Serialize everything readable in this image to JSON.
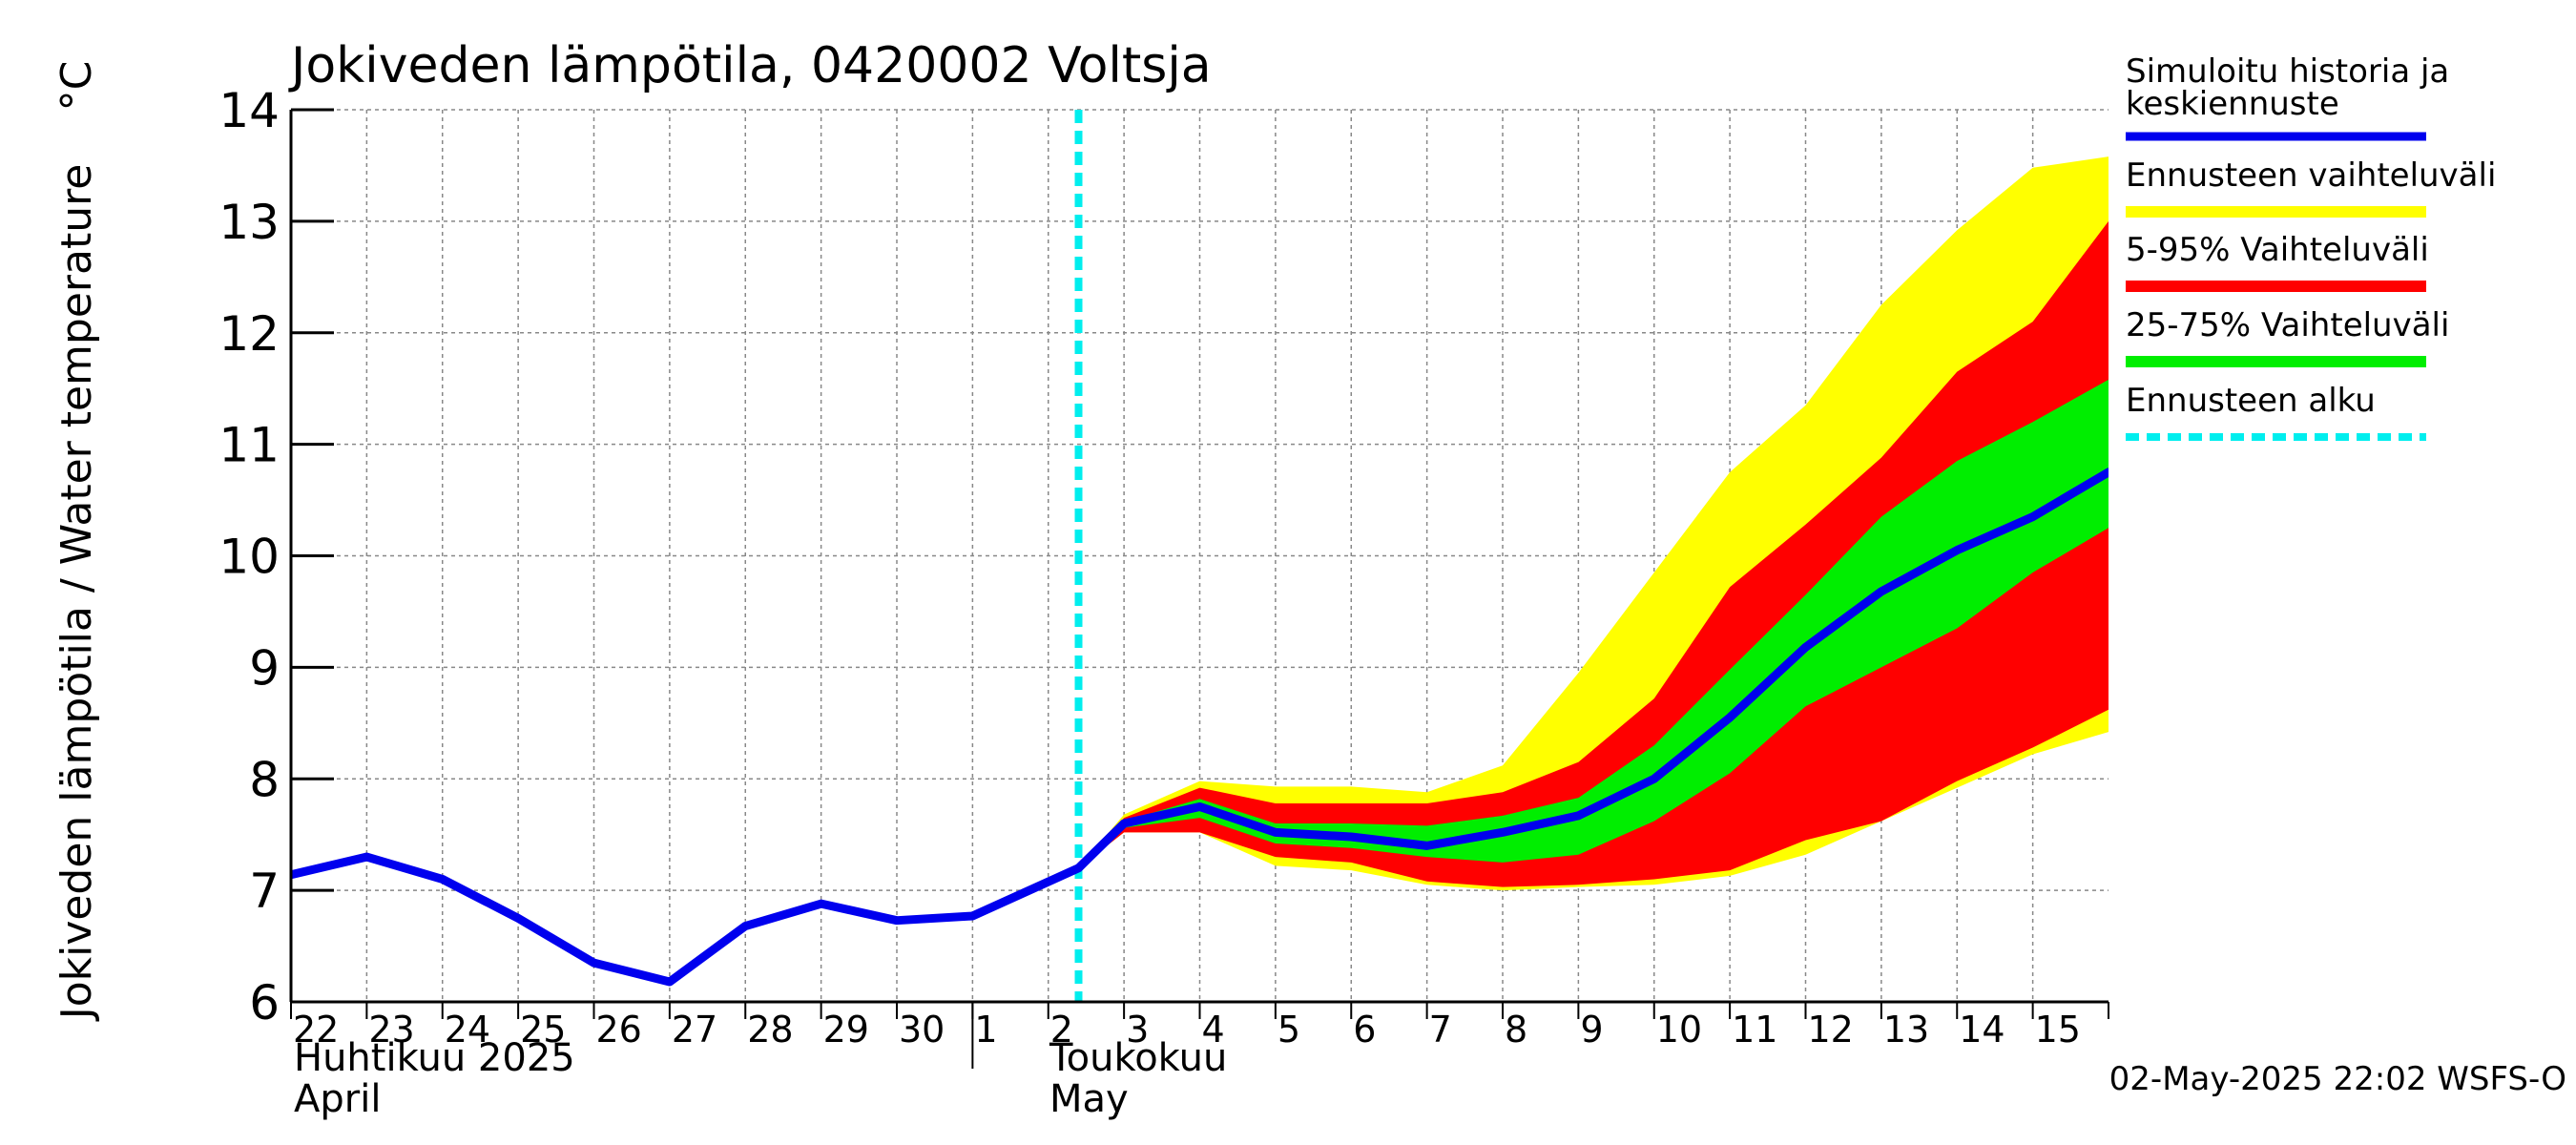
{
  "chart_data": {
    "type": "area",
    "title": "Jokiveden lämpötila, 0420002 Voltsja",
    "ylabel": "Jokiveden lämpötila / Water temperature",
    "yunit": "°C",
    "ylim": [
      6,
      14
    ],
    "yticks": [
      6,
      7,
      8,
      9,
      10,
      11,
      12,
      13,
      14
    ],
    "x_start_day": "2025-04-22",
    "x_days": 24,
    "day_labels": [
      "22",
      "23",
      "24",
      "25",
      "26",
      "27",
      "28",
      "29",
      "30",
      "1",
      "2",
      "3",
      "4",
      "5",
      "6",
      "7",
      "8",
      "9",
      "10",
      "11",
      "12",
      "13",
      "14",
      "15"
    ],
    "month_labels": {
      "april_fi": "Huhtikuu  2025",
      "april_en": "April",
      "may_fi": "Toukokuu",
      "may_en": "May"
    },
    "forecast_start_day": 10.4,
    "legend": [
      {
        "label": "Simuloitu historia ja keskiennuste",
        "color": "#0000ee",
        "style": "solid"
      },
      {
        "label": "Ennusteen vaihteluväli",
        "color": "#ffff00",
        "style": "solid"
      },
      {
        "label": "5-95% Vaihteluväli",
        "color": "#ff0000",
        "style": "solid"
      },
      {
        "label": "25-75% Vaihteluväli",
        "color": "#00ee00",
        "style": "solid"
      },
      {
        "label": "Ennusteen alku",
        "color": "#00eeee",
        "style": "dashed"
      }
    ],
    "footer": "02-May-2025 22:02 WSFS-O",
    "series": [
      {
        "name": "Simuloitu historia ja keskiennuste",
        "x": [
          0,
          1,
          2,
          3,
          4,
          5,
          6,
          7,
          8,
          9,
          10.4,
          11,
          12,
          13,
          14,
          15,
          16,
          17,
          18,
          19,
          20,
          21,
          22,
          23,
          24
        ],
        "values": [
          7.14,
          7.3,
          7.1,
          6.75,
          6.35,
          6.18,
          6.68,
          6.88,
          6.73,
          6.77,
          7.2,
          7.6,
          7.75,
          7.52,
          7.48,
          7.4,
          7.52,
          7.67,
          8.0,
          8.55,
          9.18,
          9.68,
          10.05,
          10.35,
          10.75
        ]
      },
      {
        "name": "Ennusteen vaihteluväli",
        "x": [
          10.4,
          11,
          12,
          13,
          14,
          15,
          16,
          17,
          18,
          19,
          20,
          21,
          22,
          23,
          24
        ],
        "upper": [
          7.2,
          7.68,
          7.98,
          7.93,
          7.93,
          7.88,
          8.12,
          8.95,
          9.85,
          10.75,
          11.35,
          12.25,
          12.92,
          13.48,
          13.58
        ],
        "lower": [
          7.2,
          7.52,
          7.52,
          7.22,
          7.18,
          7.05,
          7.0,
          7.03,
          7.05,
          7.13,
          7.32,
          7.62,
          7.92,
          8.22,
          8.42
        ]
      },
      {
        "name": "5-95% Vaihteluväli",
        "x": [
          10.4,
          11,
          12,
          13,
          14,
          15,
          16,
          17,
          18,
          19,
          20,
          21,
          22,
          23,
          24
        ],
        "upper": [
          7.2,
          7.65,
          7.92,
          7.78,
          7.78,
          7.78,
          7.88,
          8.15,
          8.72,
          9.72,
          10.28,
          10.88,
          11.65,
          12.1,
          13.0
        ],
        "lower": [
          7.2,
          7.52,
          7.52,
          7.3,
          7.25,
          7.08,
          7.03,
          7.05,
          7.1,
          7.18,
          7.45,
          7.62,
          7.98,
          8.28,
          8.62
        ]
      },
      {
        "name": "25-75% Vaihteluväli",
        "x": [
          10.4,
          11,
          12,
          13,
          14,
          15,
          16,
          17,
          18,
          19,
          20,
          21,
          22,
          23,
          24
        ],
        "upper": [
          7.2,
          7.62,
          7.82,
          7.6,
          7.6,
          7.58,
          7.67,
          7.83,
          8.3,
          8.98,
          9.65,
          10.35,
          10.85,
          11.2,
          11.58
        ],
        "lower": [
          7.2,
          7.56,
          7.65,
          7.42,
          7.38,
          7.3,
          7.25,
          7.32,
          7.62,
          8.05,
          8.65,
          9.0,
          9.35,
          9.85,
          10.25
        ]
      }
    ]
  }
}
